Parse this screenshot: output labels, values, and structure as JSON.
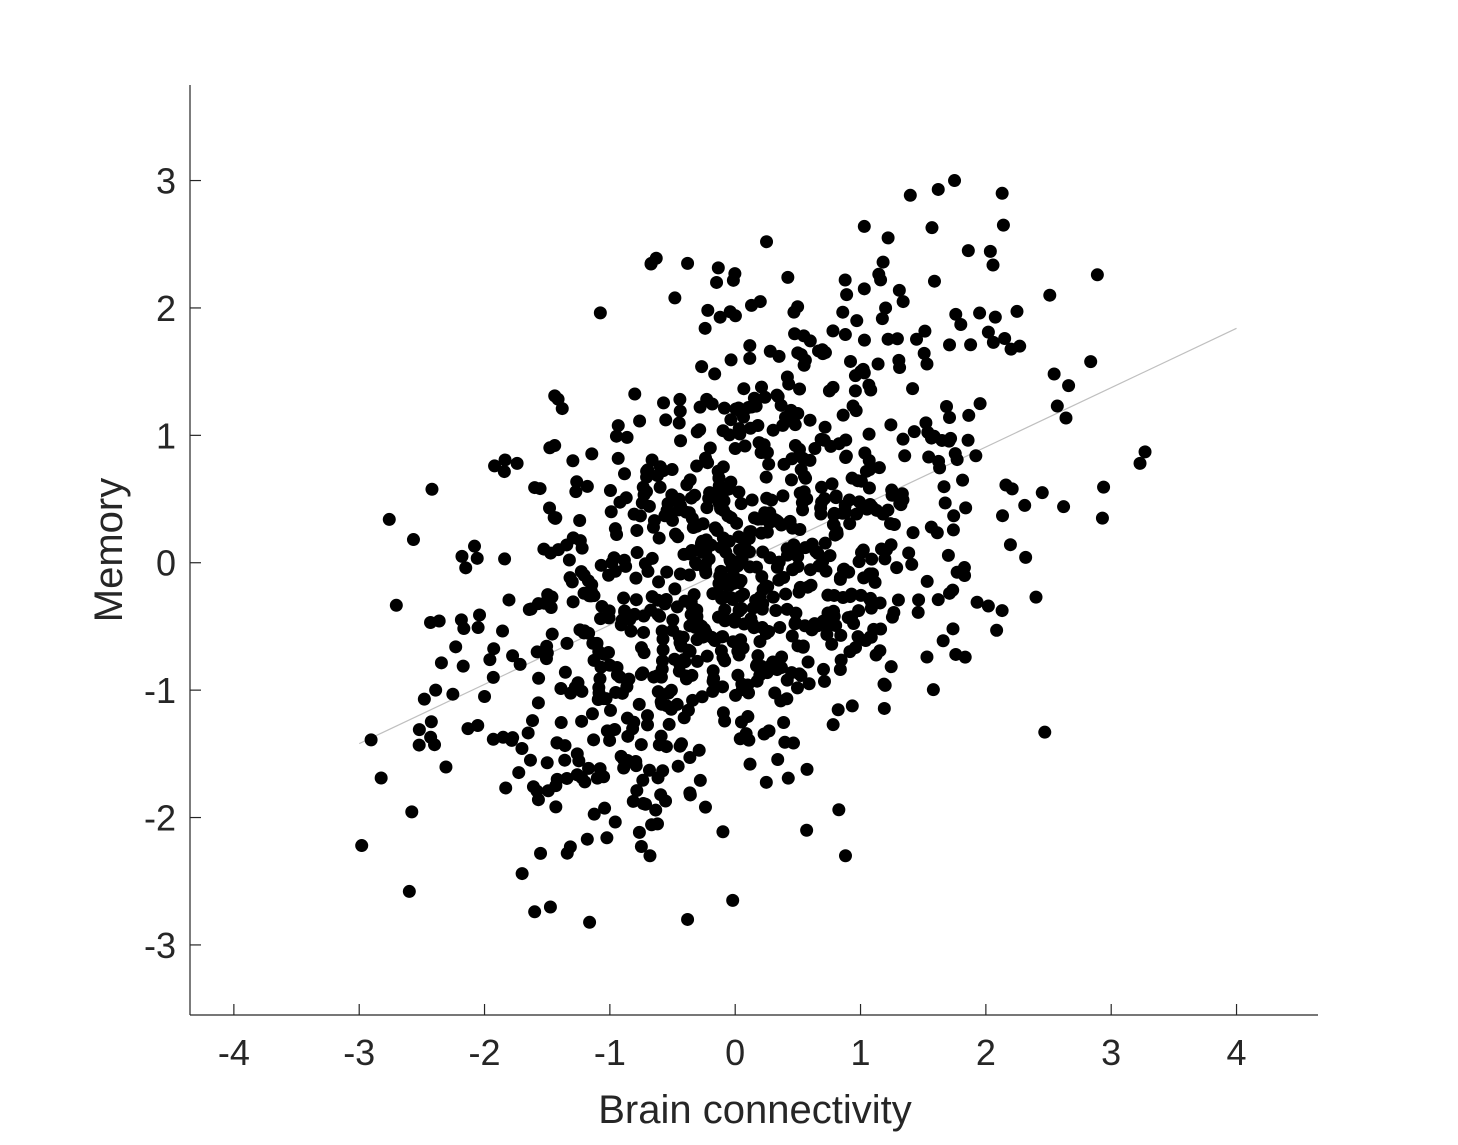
{
  "chart_data": {
    "type": "scatter",
    "title": "",
    "xlabel": "Brain connectivity",
    "ylabel": "Memory",
    "xlim": [
      -4.35,
      4.65
    ],
    "ylim": [
      -3.55,
      3.75
    ],
    "xticks": [
      -4,
      -3,
      -2,
      -1,
      0,
      1,
      2,
      3,
      4
    ],
    "xtick_labels": [
      "-4",
      "-3",
      "-2",
      "-1",
      "0",
      "1",
      "2",
      "3",
      "4"
    ],
    "yticks": [
      -3,
      -2,
      -1,
      0,
      1,
      2,
      3
    ],
    "ytick_labels": [
      "-3",
      "-2",
      "-1",
      "0",
      "1",
      "2",
      "3"
    ],
    "grid": false,
    "legend": "none",
    "colors": {
      "points": "#000000",
      "fit_line": "#bfbfbf",
      "axes": "#262626"
    },
    "fit_line": {
      "x": [
        -3.0,
        4.0
      ],
      "y": [
        -1.42,
        1.84
      ]
    },
    "series": [
      {
        "point_count_shown_approx": 1000,
        "x": [
          1.75,
          2.13,
          1.62,
          1.03,
          2.14,
          1.22,
          0.25,
          1.57,
          -0.38,
          0.42,
          -0.67,
          -0.63,
          1.86,
          1.95,
          1.18,
          2.51,
          -0.24,
          1.03,
          1.34,
          1.71,
          1.59,
          1.16,
          1.2,
          1.8,
          1.76,
          0.97,
          2.02,
          2.06,
          1.53,
          2.15,
          2.27,
          -0.04,
          0.13,
          0.2,
          0.28,
          0.35,
          0.78,
          0.72,
          0.55,
          0.92,
          1.14,
          2.66,
          2.57,
          3.27,
          3.23,
          2.93,
          2.62,
          2.45,
          2.31,
          2.21,
          2.16,
          1.92,
          1.65,
          1.71,
          -1.38,
          -1.44,
          -2.76,
          -1.92,
          -1.74,
          -2.08,
          -2.18,
          -1.84,
          -1.6,
          -1.3,
          -1.46,
          -1.58,
          -2.15,
          -2.23,
          -2.04,
          -1.93,
          -2.43,
          -2.52,
          -2.39,
          -2.0,
          -2.98,
          -2.6,
          -1.6,
          -1.7,
          -0.38,
          -0.02,
          0.57,
          0.88,
          -1.34,
          -1.18,
          -0.68,
          -0.62,
          -1.57,
          -1.42,
          -1.36,
          -1.26,
          -1.13,
          -1.02,
          -0.86,
          -0.7,
          -0.51,
          -0.34,
          -0.18,
          0.1,
          0.29,
          0.37,
          0.77,
          0.98,
          1.16,
          1.46,
          1.62,
          1.71,
          1.83,
          1.93,
          2.47,
          2.4,
          2.02,
          1.76,
          1.53,
          0.59,
          0.05,
          -0.44,
          -0.91,
          -1.05,
          -1.2,
          -0.94,
          -0.41,
          -0.1,
          0.15,
          0.48,
          0.79,
          1.08
        ],
        "y": [
          3.0,
          2.9,
          2.93,
          2.64,
          2.65,
          2.55,
          2.52,
          2.63,
          2.35,
          2.24,
          2.35,
          2.39,
          2.45,
          1.96,
          2.36,
          2.1,
          1.84,
          2.15,
          2.05,
          1.71,
          2.21,
          2.22,
          2.0,
          1.87,
          1.95,
          1.9,
          1.81,
          1.73,
          1.56,
          1.76,
          1.7,
          1.97,
          2.02,
          2.05,
          1.66,
          1.62,
          1.82,
          1.65,
          1.55,
          1.58,
          1.56,
          1.39,
          1.23,
          0.87,
          0.78,
          0.35,
          0.44,
          0.55,
          0.45,
          0.58,
          0.61,
          0.84,
          0.96,
          1.14,
          1.21,
          1.31,
          0.34,
          0.76,
          0.78,
          0.13,
          0.05,
          0.03,
          0.59,
          -0.15,
          -0.56,
          -0.7,
          -0.04,
          -0.66,
          -0.41,
          -0.9,
          -1.37,
          -1.31,
          -1.0,
          -1.05,
          -2.22,
          -2.58,
          -2.74,
          -2.44,
          -2.8,
          -2.65,
          -2.1,
          -2.3,
          -2.28,
          -2.17,
          -2.3,
          -2.05,
          -1.86,
          -1.7,
          -1.55,
          -1.5,
          -1.39,
          -1.32,
          -1.22,
          -1.2,
          -1.15,
          -1.08,
          -1.01,
          -0.96,
          -0.8,
          -0.74,
          -0.64,
          -0.58,
          -0.52,
          -0.39,
          -0.29,
          -0.24,
          -0.1,
          -0.31,
          -1.33,
          -0.27,
          -0.34,
          -0.72,
          -0.74,
          -0.95,
          -1.25,
          -1.44,
          -1.52,
          -1.68,
          -1.72,
          -0.88,
          -0.76,
          -0.58,
          -0.51,
          -0.47,
          -0.42,
          -0.28
        ]
      }
    ]
  }
}
